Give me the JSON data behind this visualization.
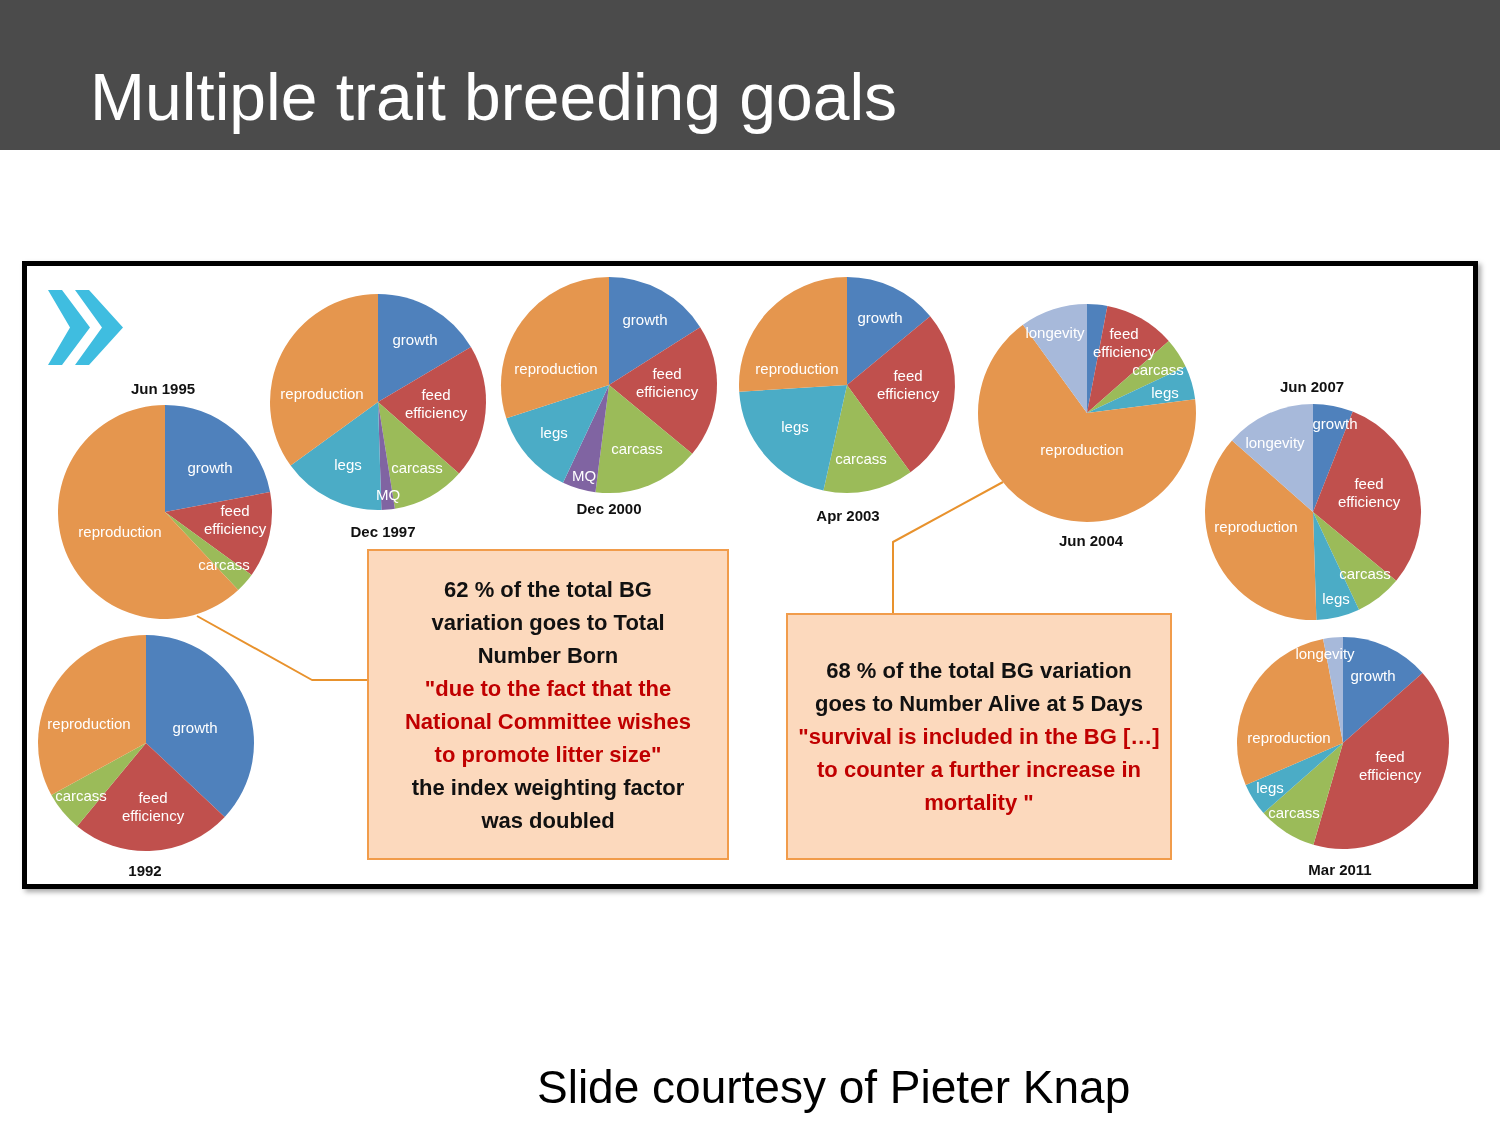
{
  "chart_data": [
    {
      "type": "other",
      "title": "Multiple trait breeding goals"
    },
    {
      "type": "pie",
      "title": "1992",
      "categories": [
        "growth",
        "feed efficiency",
        "carcass",
        "reproduction"
      ],
      "values": [
        37,
        24,
        6,
        33
      ],
      "colors": [
        "#4f81bc",
        "#c0504d",
        "#9bbb59",
        "#e5964e"
      ]
    },
    {
      "type": "pie",
      "title": "Jun 1995",
      "categories": [
        "growth",
        "feed efficiency",
        "carcass",
        "reproduction"
      ],
      "values": [
        22,
        13,
        3,
        62
      ],
      "colors": [
        "#4f81bc",
        "#c0504d",
        "#9bbb59",
        "#e5964e"
      ]
    },
    {
      "type": "pie",
      "title": "Dec 1997",
      "categories": [
        "growth",
        "feed efficiency",
        "carcass",
        "MQ",
        "legs",
        "reproduction"
      ],
      "values": [
        16.5,
        20,
        11,
        2,
        15.5,
        35
      ],
      "colors": [
        "#4f81bc",
        "#c0504d",
        "#9bbb59",
        "#8064a2",
        "#4bacc6",
        "#e5964e"
      ]
    },
    {
      "type": "pie",
      "title": "Dec 2000",
      "categories": [
        "growth",
        "feed efficiency",
        "carcass",
        "MQ",
        "legs",
        "reproduction"
      ],
      "values": [
        16,
        20,
        16,
        5,
        13,
        30
      ],
      "colors": [
        "#4f81bc",
        "#c0504d",
        "#9bbb59",
        "#8064a2",
        "#4bacc6",
        "#e5964e"
      ]
    },
    {
      "type": "pie",
      "title": "Apr 2003",
      "categories": [
        "growth",
        "feed efficiency",
        "carcass",
        "legs",
        "reproduction"
      ],
      "values": [
        14,
        26,
        13.5,
        20.5,
        26
      ],
      "colors": [
        "#4f81bc",
        "#c0504d",
        "#9bbb59",
        "#4bacc6",
        "#e5964e"
      ]
    },
    {
      "type": "pie",
      "title": "Jun 2004",
      "categories": [
        null,
        "feed efficiency",
        "carcass",
        "legs",
        "reproduction",
        "longevity"
      ],
      "values": [
        3,
        10.5,
        4.5,
        5,
        67,
        10
      ],
      "colors": [
        "#4f81bc",
        "#c0504d",
        "#9bbb59",
        "#4bacc6",
        "#e5964e",
        "#a7b9da"
      ]
    },
    {
      "type": "pie",
      "title": "Jun 2007",
      "categories": [
        "growth",
        "feed efficiency",
        "carcass",
        "legs",
        "reproduction",
        "longevity"
      ],
      "values": [
        6,
        30,
        7,
        6.5,
        37,
        13.5
      ],
      "colors": [
        "#4f81bc",
        "#c0504d",
        "#9bbb59",
        "#4bacc6",
        "#e5964e",
        "#a7b9da"
      ]
    },
    {
      "type": "pie",
      "title": "Mar 2011",
      "categories": [
        "growth",
        "feed efficiency",
        "carcass",
        "legs",
        "reproduction",
        "longevity"
      ],
      "values": [
        13.5,
        41,
        9,
        5,
        28.5,
        3
      ],
      "colors": [
        "#4f81bc",
        "#c0504d",
        "#9bbb59",
        "#4bacc6",
        "#e5964e",
        "#a7b9da"
      ]
    },
    {
      "type": "other",
      "annotations": [
        "62 % of the total BG variation goes to Total Number Born",
        "\"due to the fact that the National Committee wishes to promote litter size\"",
        "the index weighting factor was doubled"
      ]
    },
    {
      "type": "other",
      "annotations": [
        "68 % of the total BG variation goes to Number Alive at 5 Days",
        "\"survival is included in the BG […] to counter a further increase in mortality \""
      ]
    },
    {
      "type": "other",
      "annotations": [
        "Slide courtesy of Pieter Knap"
      ]
    }
  ]
}
